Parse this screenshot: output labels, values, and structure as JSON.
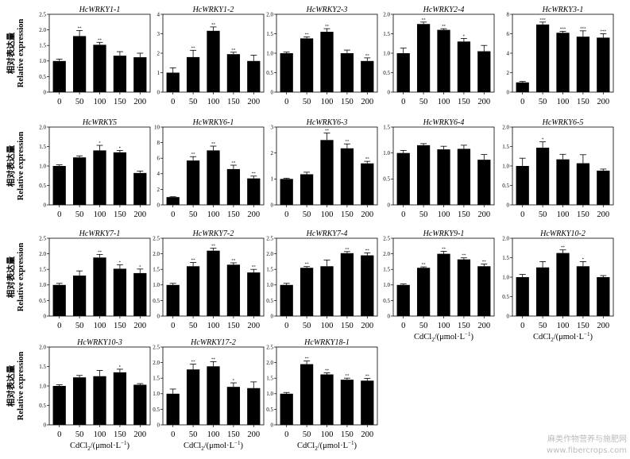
{
  "ylabel": {
    "cn": "相对表达量",
    "en": "Relative expression"
  },
  "xlabel": {
    "prefix": "CdCl",
    "sub": "2",
    "unit": "/(μmol·L",
    "sup": "−1",
    "close": ")"
  },
  "watermark": {
    "cn": "麻类作物营养与施肥网",
    "en": "www.fibercrops.com"
  },
  "colors": {
    "bar": "#000000",
    "axis": "#000000"
  },
  "chart_data": [
    {
      "type": "bar",
      "title": "HcWRKY1-1",
      "categories": [
        "0",
        "50",
        "100",
        "150",
        "200"
      ],
      "values": [
        1.0,
        1.8,
        1.52,
        1.17,
        1.12
      ],
      "errors": [
        0.06,
        0.18,
        0.08,
        0.13,
        0.13
      ],
      "significance": [
        "",
        "**",
        "**",
        "",
        ""
      ],
      "ylim": [
        0,
        2.5
      ],
      "yticks": [
        "0",
        "0.5",
        "1.0",
        "1.5",
        "2.0",
        "2.5"
      ],
      "show_ylabel": true,
      "show_xlabel": false
    },
    {
      "type": "bar",
      "title": "HcWRKY1-2",
      "categories": [
        "0",
        "50",
        "100",
        "150",
        "200"
      ],
      "values": [
        1.0,
        1.8,
        3.15,
        1.95,
        1.6
      ],
      "errors": [
        0.25,
        0.35,
        0.2,
        0.1,
        0.3
      ],
      "significance": [
        "",
        "**",
        "**",
        "**",
        ""
      ],
      "ylim": [
        0,
        4
      ],
      "yticks": [
        "0",
        "1",
        "2",
        "3",
        "4"
      ],
      "show_ylabel": false,
      "show_xlabel": false
    },
    {
      "type": "bar",
      "title": "HcWRKY2-3",
      "categories": [
        "0",
        "50",
        "100",
        "150",
        "200"
      ],
      "values": [
        1.0,
        1.38,
        1.55,
        1.0,
        0.8
      ],
      "errors": [
        0.03,
        0.04,
        0.08,
        0.08,
        0.08
      ],
      "significance": [
        "",
        "**",
        "**",
        "",
        "**"
      ],
      "ylim": [
        0,
        2.0
      ],
      "yticks": [
        "0",
        "0.5",
        "1.0",
        "1.5",
        "2.0"
      ],
      "show_ylabel": false,
      "show_xlabel": false
    },
    {
      "type": "bar",
      "title": "HcWRKY2-4",
      "categories": [
        "0",
        "50",
        "100",
        "150",
        "200"
      ],
      "values": [
        1.0,
        1.75,
        1.6,
        1.3,
        1.05
      ],
      "errors": [
        0.13,
        0.05,
        0.03,
        0.08,
        0.15
      ],
      "significance": [
        "",
        "**",
        "**",
        "*",
        ""
      ],
      "ylim": [
        0,
        2.0
      ],
      "yticks": [
        "0",
        "0.5",
        "1.0",
        "1.5",
        "2.0"
      ],
      "show_ylabel": false,
      "show_xlabel": false
    },
    {
      "type": "bar",
      "title": "HcWRKY3-1",
      "categories": [
        "0",
        "50",
        "100",
        "150",
        "200"
      ],
      "values": [
        1.0,
        6.95,
        6.1,
        5.7,
        5.6
      ],
      "errors": [
        0.1,
        0.25,
        0.15,
        0.6,
        0.4
      ],
      "significance": [
        "",
        "***",
        "***",
        "***",
        "***"
      ],
      "ylim": [
        0,
        8
      ],
      "yticks": [
        "0",
        "2",
        "4",
        "6",
        "8"
      ],
      "show_ylabel": false,
      "show_xlabel": false
    },
    {
      "type": "bar",
      "title": "HcWRKY5",
      "categories": [
        "0",
        "50",
        "100",
        "150",
        "200"
      ],
      "values": [
        1.0,
        1.22,
        1.4,
        1.35,
        0.82
      ],
      "errors": [
        0.03,
        0.04,
        0.13,
        0.05,
        0.05
      ],
      "significance": [
        "",
        "",
        "*",
        "*",
        ""
      ],
      "ylim": [
        0,
        2.0
      ],
      "yticks": [
        "0",
        "0.5",
        "1.0",
        "1.5",
        "2.0"
      ],
      "show_ylabel": true,
      "show_xlabel": false
    },
    {
      "type": "bar",
      "title": "HcWRKY6-1",
      "categories": [
        "0",
        "50",
        "100",
        "150",
        "200"
      ],
      "values": [
        1.0,
        5.7,
        7.0,
        4.6,
        3.4
      ],
      "errors": [
        0.05,
        0.5,
        0.55,
        0.5,
        0.3
      ],
      "significance": [
        "",
        "**",
        "**",
        "**",
        "**"
      ],
      "ylim": [
        0,
        10
      ],
      "yticks": [
        "0",
        "2",
        "4",
        "6",
        "8",
        "10"
      ],
      "show_ylabel": false,
      "show_xlabel": false
    },
    {
      "type": "bar",
      "title": "HcWRKY6-3",
      "categories": [
        "0",
        "50",
        "100",
        "150",
        "200"
      ],
      "values": [
        1.0,
        1.18,
        2.5,
        2.18,
        1.6
      ],
      "errors": [
        0.03,
        0.08,
        0.27,
        0.17,
        0.08
      ],
      "significance": [
        "",
        "",
        "**",
        "**",
        "**"
      ],
      "ylim": [
        0,
        3
      ],
      "yticks": [
        "0",
        "1",
        "2",
        "3"
      ],
      "show_ylabel": false,
      "show_xlabel": false
    },
    {
      "type": "bar",
      "title": "HcWRKY6-4",
      "categories": [
        "0",
        "50",
        "100",
        "150",
        "200"
      ],
      "values": [
        1.0,
        1.15,
        1.07,
        1.08,
        0.87
      ],
      "errors": [
        0.05,
        0.03,
        0.06,
        0.07,
        0.1
      ],
      "significance": [
        "",
        "",
        "",
        "",
        ""
      ],
      "ylim": [
        0,
        1.5
      ],
      "yticks": [
        "0",
        "0.5",
        "1.0",
        "1.5"
      ],
      "show_ylabel": false,
      "show_xlabel": false
    },
    {
      "type": "bar",
      "title": "HcWRKY6-5",
      "categories": [
        "0",
        "50",
        "100",
        "150",
        "200"
      ],
      "values": [
        1.0,
        1.47,
        1.17,
        1.07,
        0.88
      ],
      "errors": [
        0.2,
        0.15,
        0.13,
        0.22,
        0.04
      ],
      "significance": [
        "",
        "*",
        "",
        "",
        ""
      ],
      "ylim": [
        0,
        2.0
      ],
      "yticks": [
        "0",
        "0.5",
        "1.0",
        "1.5",
        "2.0"
      ],
      "show_ylabel": false,
      "show_xlabel": false
    },
    {
      "type": "bar",
      "title": "HcWRKY7-1",
      "categories": [
        "0",
        "50",
        "100",
        "150",
        "200"
      ],
      "values": [
        1.0,
        1.3,
        1.88,
        1.52,
        1.38
      ],
      "errors": [
        0.05,
        0.15,
        0.1,
        0.13,
        0.13
      ],
      "significance": [
        "",
        "",
        "**",
        "*",
        "*"
      ],
      "ylim": [
        0,
        2.5
      ],
      "yticks": [
        "0",
        "0.5",
        "1.0",
        "1.5",
        "2.0",
        "2.5"
      ],
      "show_ylabel": true,
      "show_xlabel": false
    },
    {
      "type": "bar",
      "title": "HcWRKY7-2",
      "categories": [
        "0",
        "50",
        "100",
        "150",
        "200"
      ],
      "values": [
        1.0,
        1.6,
        2.1,
        1.65,
        1.4
      ],
      "errors": [
        0.05,
        0.12,
        0.08,
        0.06,
        0.1
      ],
      "significance": [
        "",
        "**",
        "**",
        "**",
        "**"
      ],
      "ylim": [
        0,
        2.5
      ],
      "yticks": [
        "0",
        "0.5",
        "1.0",
        "1.5",
        "2.0",
        "2.5"
      ],
      "show_ylabel": false,
      "show_xlabel": false
    },
    {
      "type": "bar",
      "title": "HcWRKY7-4",
      "categories": [
        "0",
        "50",
        "100",
        "150",
        "200"
      ],
      "values": [
        1.0,
        1.55,
        1.6,
        2.02,
        1.95
      ],
      "errors": [
        0.05,
        0.04,
        0.2,
        0.05,
        0.08
      ],
      "significance": [
        "",
        "**",
        "",
        "**",
        "**"
      ],
      "ylim": [
        0,
        2.5
      ],
      "yticks": [
        "0",
        "0.5",
        "1.0",
        "1.5",
        "2.0",
        "2.5"
      ],
      "show_ylabel": false,
      "show_xlabel": false
    },
    {
      "type": "bar",
      "title": "HcWRKY9-1",
      "categories": [
        "0",
        "50",
        "100",
        "150",
        "200"
      ],
      "values": [
        1.0,
        1.55,
        2.0,
        1.82,
        1.6
      ],
      "errors": [
        0.03,
        0.03,
        0.08,
        0.05,
        0.07
      ],
      "significance": [
        "",
        "**",
        "**",
        "**",
        "**"
      ],
      "ylim": [
        0,
        2.5
      ],
      "yticks": [
        "0",
        "0.5",
        "1.0",
        "1.5",
        "2.0",
        "2.5"
      ],
      "show_ylabel": false,
      "show_xlabel": true
    },
    {
      "type": "bar",
      "title": "HcWRKY10-2",
      "categories": [
        "0",
        "50",
        "100",
        "150",
        "200"
      ],
      "values": [
        1.0,
        1.25,
        1.62,
        1.28,
        1.0
      ],
      "errors": [
        0.07,
        0.15,
        0.08,
        0.12,
        0.04
      ],
      "significance": [
        "",
        "",
        "**",
        "*",
        ""
      ],
      "ylim": [
        0,
        2.0
      ],
      "yticks": [
        "0",
        "0.5",
        "1.0",
        "1.5",
        "2.0"
      ],
      "show_ylabel": false,
      "show_xlabel": true
    },
    {
      "type": "bar",
      "title": "HcWRKY10-3",
      "categories": [
        "0",
        "50",
        "100",
        "150",
        "200"
      ],
      "values": [
        1.0,
        1.22,
        1.25,
        1.35,
        1.03
      ],
      "errors": [
        0.03,
        0.05,
        0.15,
        0.08,
        0.03
      ],
      "significance": [
        "",
        "",
        "",
        "*",
        ""
      ],
      "ylim": [
        0,
        2.0
      ],
      "yticks": [
        "0",
        "0.5",
        "1.0",
        "1.5",
        "2.0"
      ],
      "show_ylabel": true,
      "show_xlabel": true
    },
    {
      "type": "bar",
      "title": "HcWRKY17-2",
      "categories": [
        "0",
        "50",
        "100",
        "150",
        "200"
      ],
      "values": [
        1.0,
        1.78,
        1.88,
        1.22,
        1.18
      ],
      "errors": [
        0.15,
        0.17,
        0.15,
        0.13,
        0.2
      ],
      "significance": [
        "",
        "**",
        "**",
        "*",
        ""
      ],
      "ylim": [
        0,
        2.5
      ],
      "yticks": [
        "0",
        "0.5",
        "1.0",
        "1.5",
        "2.0",
        "2.5"
      ],
      "show_ylabel": false,
      "show_xlabel": true
    },
    {
      "type": "bar",
      "title": "HcWRKY18-1",
      "categories": [
        "0",
        "50",
        "100",
        "150",
        "200"
      ],
      "values": [
        1.0,
        1.95,
        1.62,
        1.45,
        1.42
      ],
      "errors": [
        0.04,
        0.1,
        0.05,
        0.05,
        0.07
      ],
      "significance": [
        "",
        "**",
        "**",
        "**",
        "**"
      ],
      "ylim": [
        0,
        2.5
      ],
      "yticks": [
        "0",
        "0.5",
        "1.0",
        "1.5",
        "2.0",
        "2.5"
      ],
      "show_ylabel": false,
      "show_xlabel": true
    }
  ]
}
